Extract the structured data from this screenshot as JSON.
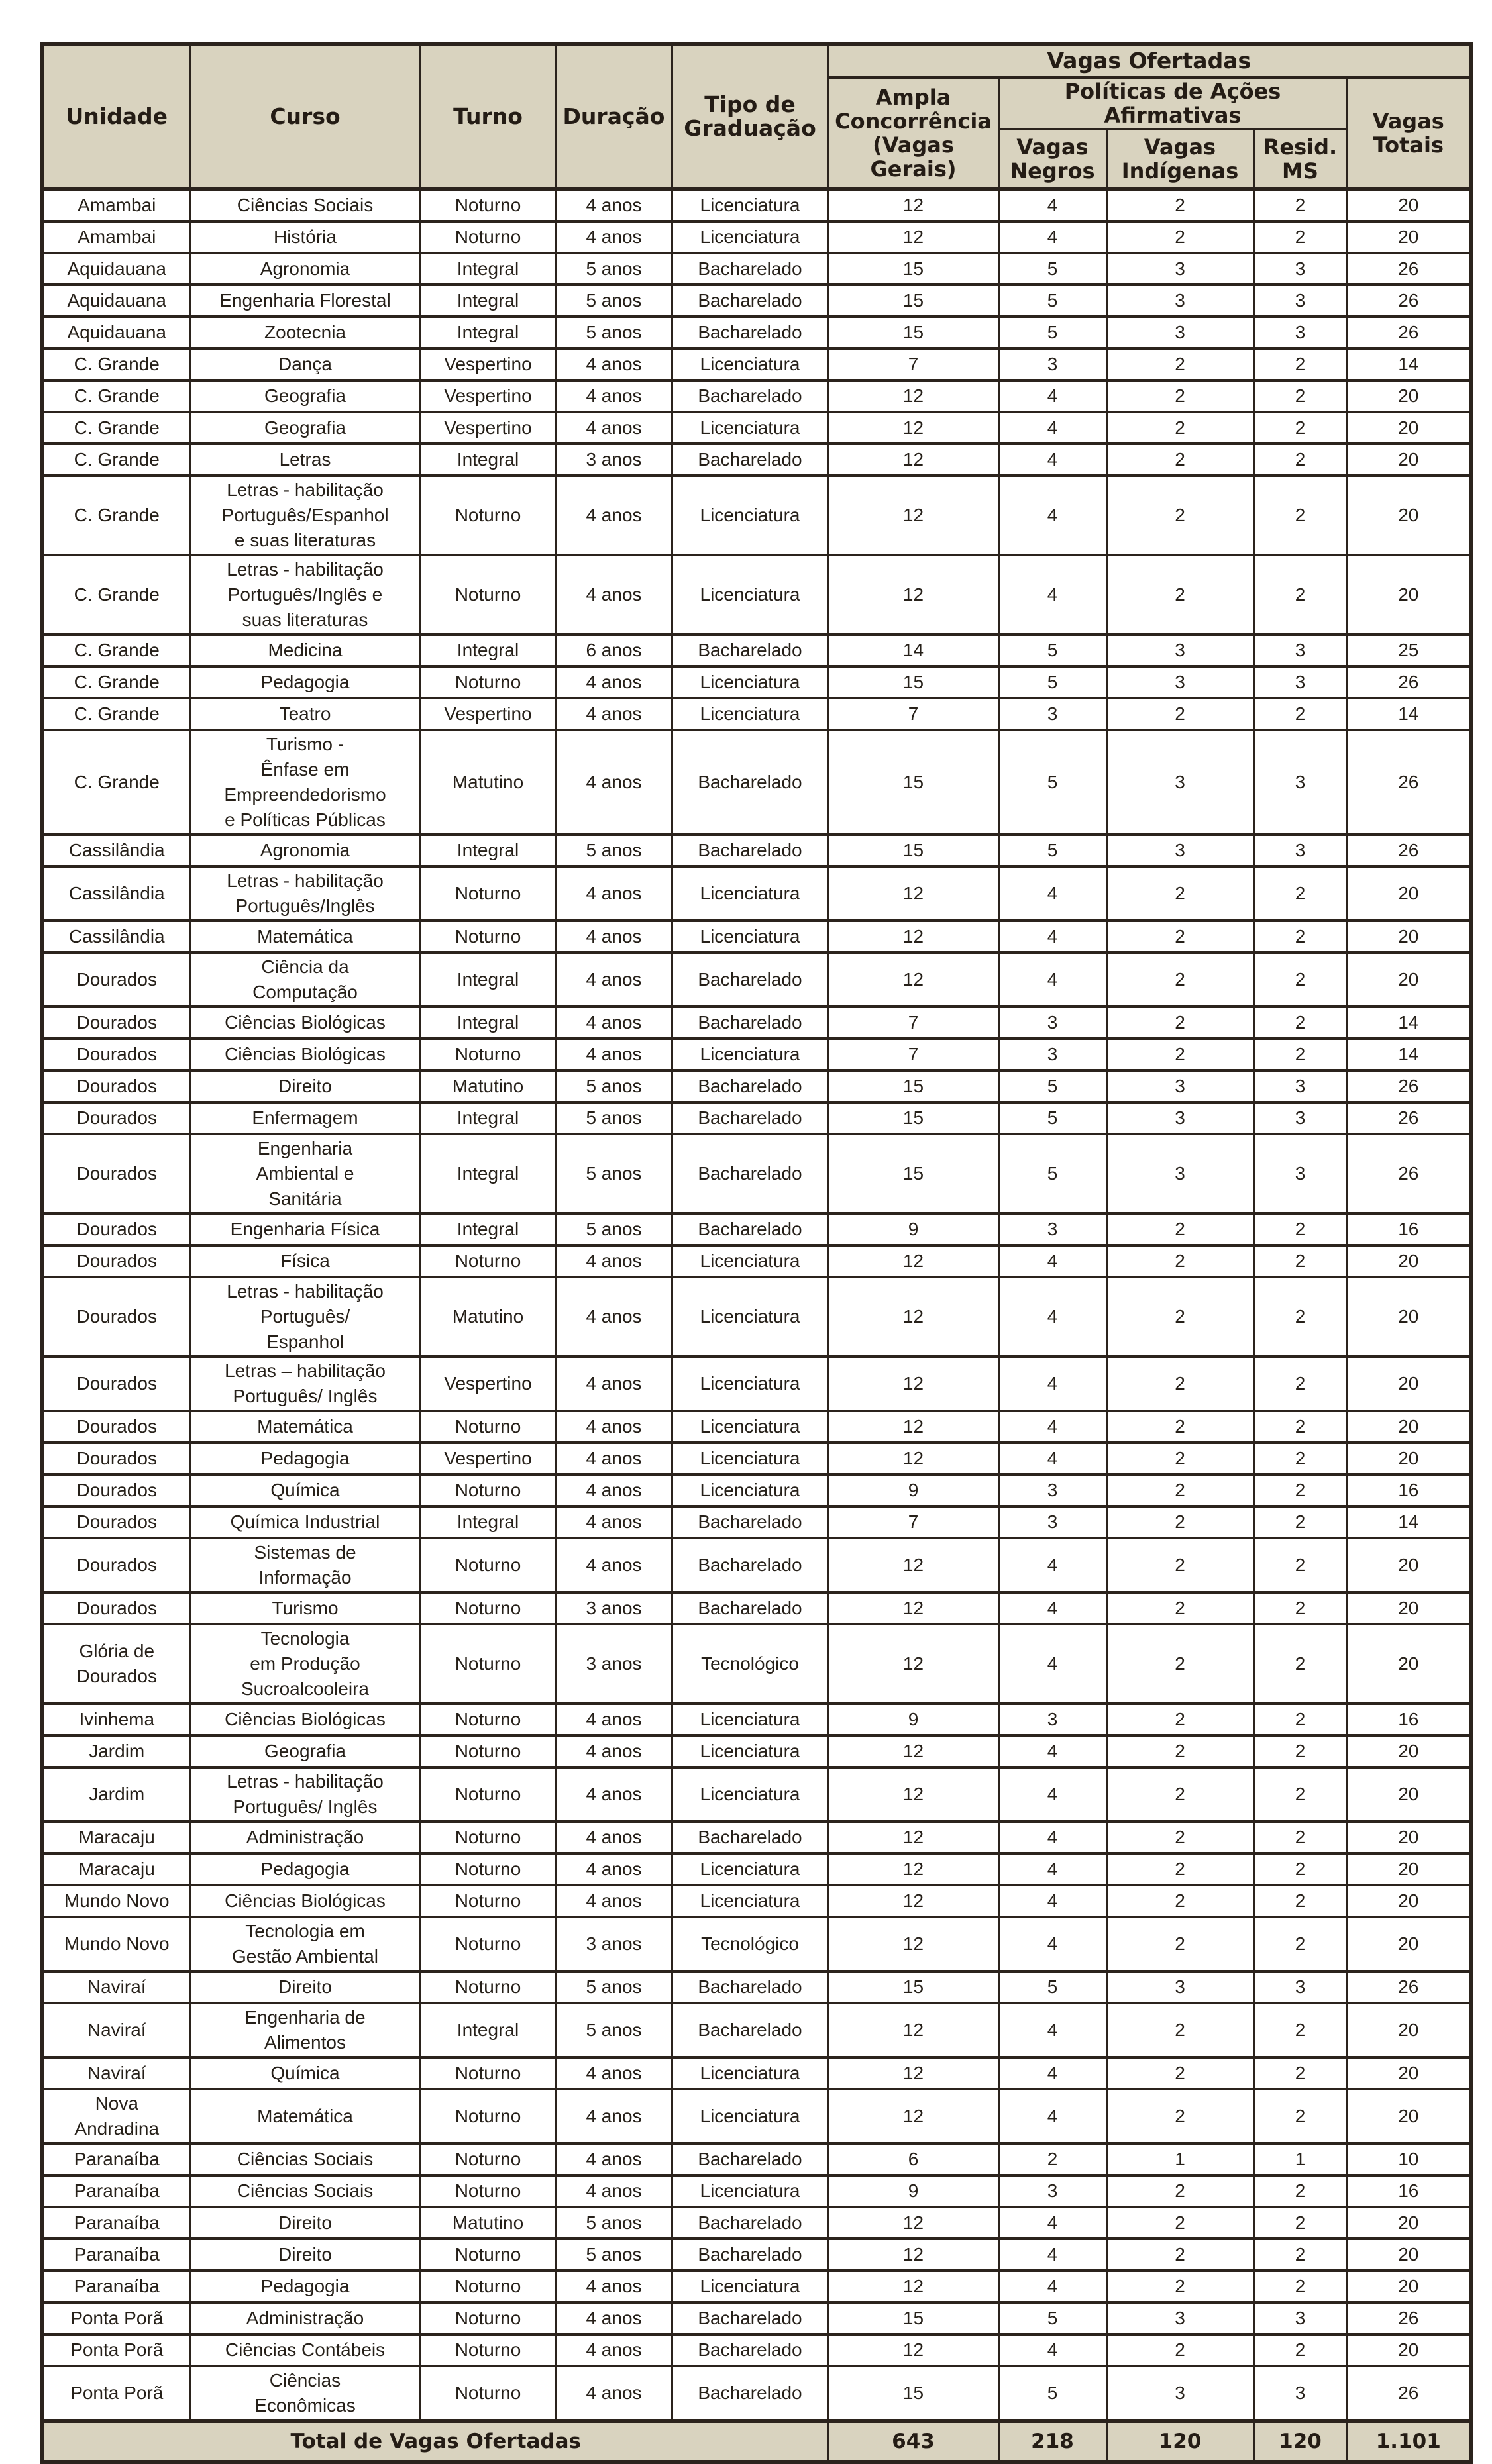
{
  "title": "Vagas Ofertadas",
  "colors": {
    "header_bg": "#d9d3bf",
    "border": "#2b231d",
    "text": "#262019",
    "row_bg": "#ffffff"
  },
  "header": {
    "columns": [
      "Unidade",
      "Curso",
      "Turno",
      "Duração",
      "Tipo de\nGraduação"
    ],
    "vagas_ofertadas": "Vagas Ofertadas",
    "ampla": "Ampla\nConcorrência\n(Vagas\nGerais)",
    "politicas": "Políticas de Ações\nAfirmativas",
    "sub": [
      "Vagas\nNegros",
      "Vagas\nIndígenas",
      "Resid.\nMS"
    ],
    "vagas_totais": "Vagas\nTotais"
  },
  "rows": [
    [
      "Amambai",
      "Ciências Sociais",
      "Noturno",
      "4 anos",
      "Licenciatura",
      "12",
      "4",
      "2",
      "2",
      "20"
    ],
    [
      "Amambai",
      "História",
      "Noturno",
      "4 anos",
      "Licenciatura",
      "12",
      "4",
      "2",
      "2",
      "20"
    ],
    [
      "Aquidauana",
      "Agronomia",
      "Integral",
      "5 anos",
      "Bacharelado",
      "15",
      "5",
      "3",
      "3",
      "26"
    ],
    [
      "Aquidauana",
      "Engenharia Florestal",
      "Integral",
      "5 anos",
      "Bacharelado",
      "15",
      "5",
      "3",
      "3",
      "26"
    ],
    [
      "Aquidauana",
      "Zootecnia",
      "Integral",
      "5 anos",
      "Bacharelado",
      "15",
      "5",
      "3",
      "3",
      "26"
    ],
    [
      "C. Grande",
      "Dança",
      "Vespertino",
      "4 anos",
      "Licenciatura",
      "7",
      "3",
      "2",
      "2",
      "14"
    ],
    [
      "C. Grande",
      "Geografia",
      "Vespertino",
      "4 anos",
      "Bacharelado",
      "12",
      "4",
      "2",
      "2",
      "20"
    ],
    [
      "C. Grande",
      "Geografia",
      "Vespertino",
      "4 anos",
      "Licenciatura",
      "12",
      "4",
      "2",
      "2",
      "20"
    ],
    [
      "C. Grande",
      "Letras",
      "Integral",
      "3 anos",
      "Bacharelado",
      "12",
      "4",
      "2",
      "2",
      "20"
    ],
    [
      "C. Grande",
      "Letras - habilitação\nPortuguês/Espanhol\ne suas literaturas",
      "Noturno",
      "4 anos",
      "Licenciatura",
      "12",
      "4",
      "2",
      "2",
      "20"
    ],
    [
      "C. Grande",
      "Letras - habilitação\nPortuguês/Inglês e\nsuas literaturas",
      "Noturno",
      "4 anos",
      "Licenciatura",
      "12",
      "4",
      "2",
      "2",
      "20"
    ],
    [
      "C. Grande",
      "Medicina",
      "Integral",
      "6 anos",
      "Bacharelado",
      "14",
      "5",
      "3",
      "3",
      "25"
    ],
    [
      "C. Grande",
      "Pedagogia",
      "Noturno",
      "4 anos",
      "Licenciatura",
      "15",
      "5",
      "3",
      "3",
      "26"
    ],
    [
      "C. Grande",
      "Teatro",
      "Vespertino",
      "4 anos",
      "Licenciatura",
      "7",
      "3",
      "2",
      "2",
      "14"
    ],
    [
      "C. Grande",
      "Turismo -\nÊnfase em\nEmpreendedorismo\ne Políticas Públicas",
      "Matutino",
      "4 anos",
      "Bacharelado",
      "15",
      "5",
      "3",
      "3",
      "26"
    ],
    [
      "Cassilândia",
      "Agronomia",
      "Integral",
      "5 anos",
      "Bacharelado",
      "15",
      "5",
      "3",
      "3",
      "26"
    ],
    [
      "Cassilândia",
      "Letras - habilitação\nPortuguês/Inglês",
      "Noturno",
      "4 anos",
      "Licenciatura",
      "12",
      "4",
      "2",
      "2",
      "20"
    ],
    [
      "Cassilândia",
      "Matemática",
      "Noturno",
      "4 anos",
      "Licenciatura",
      "12",
      "4",
      "2",
      "2",
      "20"
    ],
    [
      "Dourados",
      "Ciência da\nComputação",
      "Integral",
      "4 anos",
      "Bacharelado",
      "12",
      "4",
      "2",
      "2",
      "20"
    ],
    [
      "Dourados",
      "Ciências Biológicas",
      "Integral",
      "4 anos",
      "Bacharelado",
      "7",
      "3",
      "2",
      "2",
      "14"
    ],
    [
      "Dourados",
      "Ciências Biológicas",
      "Noturno",
      "4 anos",
      "Licenciatura",
      "7",
      "3",
      "2",
      "2",
      "14"
    ],
    [
      "Dourados",
      "Direito",
      "Matutino",
      "5 anos",
      "Bacharelado",
      "15",
      "5",
      "3",
      "3",
      "26"
    ],
    [
      "Dourados",
      "Enfermagem",
      "Integral",
      "5 anos",
      "Bacharelado",
      "15",
      "5",
      "3",
      "3",
      "26"
    ],
    [
      "Dourados",
      "Engenharia\nAmbiental e\nSanitária",
      "Integral",
      "5 anos",
      "Bacharelado",
      "15",
      "5",
      "3",
      "3",
      "26"
    ],
    [
      "Dourados",
      "Engenharia Física",
      "Integral",
      "5 anos",
      "Bacharelado",
      "9",
      "3",
      "2",
      "2",
      "16"
    ],
    [
      "Dourados",
      "Física",
      "Noturno",
      "4 anos",
      "Licenciatura",
      "12",
      "4",
      "2",
      "2",
      "20"
    ],
    [
      "Dourados",
      "Letras - habilitação\nPortuguês/\nEspanhol",
      "Matutino",
      "4 anos",
      "Licenciatura",
      "12",
      "4",
      "2",
      "2",
      "20"
    ],
    [
      "Dourados",
      "Letras – habilitação\nPortuguês/ Inglês",
      "Vespertino",
      "4 anos",
      "Licenciatura",
      "12",
      "4",
      "2",
      "2",
      "20"
    ],
    [
      "Dourados",
      "Matemática",
      "Noturno",
      "4 anos",
      "Licenciatura",
      "12",
      "4",
      "2",
      "2",
      "20"
    ],
    [
      "Dourados",
      "Pedagogia",
      "Vespertino",
      "4 anos",
      "Licenciatura",
      "12",
      "4",
      "2",
      "2",
      "20"
    ],
    [
      "Dourados",
      "Química",
      "Noturno",
      "4 anos",
      "Licenciatura",
      "9",
      "3",
      "2",
      "2",
      "16"
    ],
    [
      "Dourados",
      "Química Industrial",
      "Integral",
      "4 anos",
      "Bacharelado",
      "7",
      "3",
      "2",
      "2",
      "14"
    ],
    [
      "Dourados",
      "Sistemas de\nInformação",
      "Noturno",
      "4 anos",
      "Bacharelado",
      "12",
      "4",
      "2",
      "2",
      "20"
    ],
    [
      "Dourados",
      "Turismo",
      "Noturno",
      "3 anos",
      "Bacharelado",
      "12",
      "4",
      "2",
      "2",
      "20"
    ],
    [
      "Glória de\nDourados",
      "Tecnologia\nem Produção\nSucroalcooleira",
      "Noturno",
      "3 anos",
      "Tecnológico",
      "12",
      "4",
      "2",
      "2",
      "20"
    ],
    [
      "Ivinhema",
      "Ciências Biológicas",
      "Noturno",
      "4 anos",
      "Licenciatura",
      "9",
      "3",
      "2",
      "2",
      "16"
    ],
    [
      "Jardim",
      "Geografia",
      "Noturno",
      "4 anos",
      "Licenciatura",
      "12",
      "4",
      "2",
      "2",
      "20"
    ],
    [
      "Jardim",
      "Letras - habilitação\nPortuguês/ Inglês",
      "Noturno",
      "4 anos",
      "Licenciatura",
      "12",
      "4",
      "2",
      "2",
      "20"
    ],
    [
      "Maracaju",
      "Administração",
      "Noturno",
      "4 anos",
      "Bacharelado",
      "12",
      "4",
      "2",
      "2",
      "20"
    ],
    [
      "Maracaju",
      "Pedagogia",
      "Noturno",
      "4 anos",
      "Licenciatura",
      "12",
      "4",
      "2",
      "2",
      "20"
    ],
    [
      "Mundo Novo",
      "Ciências Biológicas",
      "Noturno",
      "4 anos",
      "Licenciatura",
      "12",
      "4",
      "2",
      "2",
      "20"
    ],
    [
      "Mundo Novo",
      "Tecnologia em\nGestão Ambiental",
      "Noturno",
      "3 anos",
      "Tecnológico",
      "12",
      "4",
      "2",
      "2",
      "20"
    ],
    [
      "Naviraí",
      "Direito",
      "Noturno",
      "5 anos",
      "Bacharelado",
      "15",
      "5",
      "3",
      "3",
      "26"
    ],
    [
      "Naviraí",
      "Engenharia de\nAlimentos",
      "Integral",
      "5 anos",
      "Bacharelado",
      "12",
      "4",
      "2",
      "2",
      "20"
    ],
    [
      "Naviraí",
      "Química",
      "Noturno",
      "4 anos",
      "Licenciatura",
      "12",
      "4",
      "2",
      "2",
      "20"
    ],
    [
      "Nova\nAndradina",
      "Matemática",
      "Noturno",
      "4 anos",
      "Licenciatura",
      "12",
      "4",
      "2",
      "2",
      "20"
    ],
    [
      "Paranaíba",
      "Ciências Sociais",
      "Noturno",
      "4 anos",
      "Bacharelado",
      "6",
      "2",
      "1",
      "1",
      "10"
    ],
    [
      "Paranaíba",
      "Ciências Sociais",
      "Noturno",
      "4 anos",
      "Licenciatura",
      "9",
      "3",
      "2",
      "2",
      "16"
    ],
    [
      "Paranaíba",
      "Direito",
      "Matutino",
      "5 anos",
      "Bacharelado",
      "12",
      "4",
      "2",
      "2",
      "20"
    ],
    [
      "Paranaíba",
      "Direito",
      "Noturno",
      "5 anos",
      "Bacharelado",
      "12",
      "4",
      "2",
      "2",
      "20"
    ],
    [
      "Paranaíba",
      "Pedagogia",
      "Noturno",
      "4 anos",
      "Licenciatura",
      "12",
      "4",
      "2",
      "2",
      "20"
    ],
    [
      "Ponta Porã",
      "Administração",
      "Noturno",
      "4 anos",
      "Bacharelado",
      "15",
      "5",
      "3",
      "3",
      "26"
    ],
    [
      "Ponta Porã",
      "Ciências Contábeis",
      "Noturno",
      "4 anos",
      "Bacharelado",
      "12",
      "4",
      "2",
      "2",
      "20"
    ],
    [
      "Ponta Porã",
      "Ciências\nEconômicas",
      "Noturno",
      "4 anos",
      "Bacharelado",
      "15",
      "5",
      "3",
      "3",
      "26"
    ]
  ],
  "cell_names": [
    "unidade-cell",
    "curso-cell",
    "turno-cell",
    "duracao-cell",
    "tipo-graduacao-cell",
    "ampla-concorrencia-cell",
    "vagas-negros-cell",
    "vagas-indigenas-cell",
    "resid-ms-cell",
    "vagas-totais-cell"
  ],
  "total": {
    "label": "Total de Vagas Ofertadas",
    "values": [
      "643",
      "218",
      "120",
      "120",
      "1.101"
    ]
  }
}
